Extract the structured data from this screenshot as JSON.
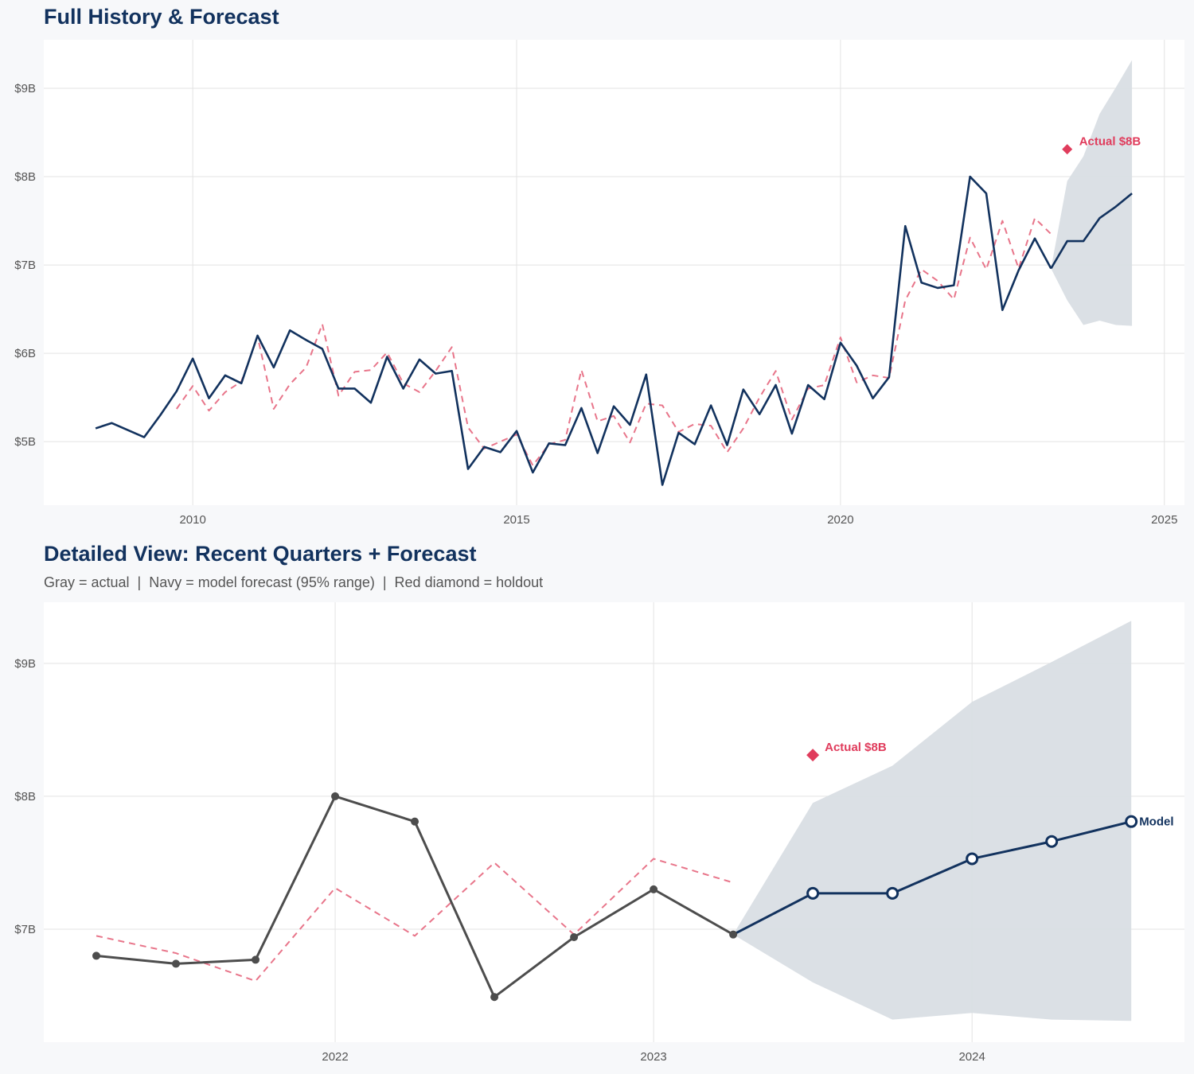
{
  "titles": {
    "top": "Full History & Forecast",
    "bottom": "Detailed View: Recent Quarters + Forecast",
    "bottom_subtitle": "Gray = actual  |  Navy = model forecast (95% range)  |  Red diamond = holdout"
  },
  "colors": {
    "navy": "#12325e",
    "gray_actual": "#4d4d4d",
    "fitted": "#e8758a",
    "holdout": "#e03c5c",
    "band": "#d9dee4",
    "grid": "#e3e3e3"
  },
  "chart_data": [
    {
      "type": "line",
      "title": "Full History & Forecast",
      "xlim": [
        "2007-Q3",
        "2025-Q2"
      ],
      "ylim": [
        4.28,
        9.55
      ],
      "x_ticks": [
        {
          "value": 2010,
          "label": "2010"
        },
        {
          "value": 2015,
          "label": "2015"
        },
        {
          "value": 2020,
          "label": "2020"
        },
        {
          "value": 2025,
          "label": "2025"
        }
      ],
      "y_ticks": [
        {
          "value": 5,
          "label": "$5B"
        },
        {
          "value": 6,
          "label": "$6B"
        },
        {
          "value": 7,
          "label": "$7B"
        },
        {
          "value": 8,
          "label": "$8B"
        },
        {
          "value": 9,
          "label": "$9B"
        }
      ],
      "grid": true,
      "actual": {
        "color": "navy",
        "markers": false,
        "points": [
          [
            "2008-Q3",
            5.15
          ],
          [
            "2008-Q4",
            5.21
          ],
          [
            "2009-Q1",
            5.13
          ],
          [
            "2009-Q2",
            5.05
          ],
          [
            "2009-Q3",
            5.3
          ],
          [
            "2009-Q4",
            5.57
          ],
          [
            "2010-Q1",
            5.94
          ],
          [
            "2010-Q2",
            5.49
          ],
          [
            "2010-Q3",
            5.75
          ],
          [
            "2010-Q4",
            5.66
          ],
          [
            "2011-Q1",
            6.2
          ],
          [
            "2011-Q2",
            5.84
          ],
          [
            "2011-Q3",
            6.26
          ],
          [
            "2011-Q4",
            6.15
          ],
          [
            "2012-Q1",
            6.05
          ],
          [
            "2012-Q2",
            5.6
          ],
          [
            "2012-Q3",
            5.6
          ],
          [
            "2012-Q4",
            5.44
          ],
          [
            "2013-Q1",
            5.96
          ],
          [
            "2013-Q2",
            5.6
          ],
          [
            "2013-Q3",
            5.93
          ],
          [
            "2013-Q4",
            5.77
          ],
          [
            "2014-Q1",
            5.8
          ],
          [
            "2014-Q2",
            4.69
          ],
          [
            "2014-Q3",
            4.94
          ],
          [
            "2014-Q4",
            4.88
          ],
          [
            "2015-Q1",
            5.12
          ],
          [
            "2015-Q2",
            4.65
          ],
          [
            "2015-Q3",
            4.98
          ],
          [
            "2015-Q4",
            4.96
          ],
          [
            "2016-Q1",
            5.38
          ],
          [
            "2016-Q2",
            4.87
          ],
          [
            "2016-Q3",
            5.4
          ],
          [
            "2016-Q4",
            5.19
          ],
          [
            "2017-Q1",
            5.76
          ],
          [
            "2017-Q2",
            4.51
          ],
          [
            "2017-Q3",
            5.1
          ],
          [
            "2017-Q4",
            4.97
          ],
          [
            "2018-Q1",
            5.41
          ],
          [
            "2018-Q2",
            4.96
          ],
          [
            "2018-Q3",
            5.59
          ],
          [
            "2018-Q4",
            5.31
          ],
          [
            "2019-Q1",
            5.64
          ],
          [
            "2019-Q2",
            5.09
          ],
          [
            "2019-Q3",
            5.64
          ],
          [
            "2019-Q4",
            5.48
          ],
          [
            "2020-Q1",
            6.12
          ],
          [
            "2020-Q2",
            5.86
          ],
          [
            "2020-Q3",
            5.49
          ],
          [
            "2020-Q4",
            5.73
          ],
          [
            "2021-Q1",
            7.44
          ],
          [
            "2021-Q2",
            6.8
          ],
          [
            "2021-Q3",
            6.74
          ],
          [
            "2021-Q4",
            6.77
          ],
          [
            "2022-Q1",
            8.0
          ],
          [
            "2022-Q2",
            7.81
          ],
          [
            "2022-Q3",
            6.49
          ],
          [
            "2022-Q4",
            6.94
          ],
          [
            "2023-Q1",
            7.3
          ],
          [
            "2023-Q2",
            6.96
          ]
        ]
      },
      "fitted": {
        "color": "fitted",
        "dashed": true,
        "points": [
          [
            "2009-Q4",
            5.37
          ],
          [
            "2010-Q1",
            5.63
          ],
          [
            "2010-Q2",
            5.35
          ],
          [
            "2010-Q3",
            5.56
          ],
          [
            "2010-Q4",
            5.68
          ],
          [
            "2011-Q1",
            6.19
          ],
          [
            "2011-Q2",
            5.37
          ],
          [
            "2011-Q3",
            5.65
          ],
          [
            "2011-Q4",
            5.84
          ],
          [
            "2012-Q1",
            6.33
          ],
          [
            "2012-Q2",
            5.52
          ],
          [
            "2012-Q3",
            5.79
          ],
          [
            "2012-Q4",
            5.81
          ],
          [
            "2013-Q1",
            6.01
          ],
          [
            "2013-Q2",
            5.66
          ],
          [
            "2013-Q3",
            5.56
          ],
          [
            "2013-Q4",
            5.8
          ],
          [
            "2014-Q1",
            6.07
          ],
          [
            "2014-Q2",
            5.16
          ],
          [
            "2014-Q3",
            4.92
          ],
          [
            "2014-Q4",
            5.0
          ],
          [
            "2015-Q1",
            5.08
          ],
          [
            "2015-Q2",
            4.73
          ],
          [
            "2015-Q3",
            4.97
          ],
          [
            "2015-Q4",
            5.02
          ],
          [
            "2016-Q1",
            5.81
          ],
          [
            "2016-Q2",
            5.23
          ],
          [
            "2016-Q3",
            5.29
          ],
          [
            "2016-Q4",
            4.99
          ],
          [
            "2017-Q1",
            5.43
          ],
          [
            "2017-Q2",
            5.41
          ],
          [
            "2017-Q3",
            5.11
          ],
          [
            "2017-Q4",
            5.2
          ],
          [
            "2018-Q1",
            5.18
          ],
          [
            "2018-Q2",
            4.88
          ],
          [
            "2018-Q3",
            5.15
          ],
          [
            "2018-Q4",
            5.5
          ],
          [
            "2019-Q1",
            5.8
          ],
          [
            "2019-Q2",
            5.25
          ],
          [
            "2019-Q3",
            5.6
          ],
          [
            "2019-Q4",
            5.64
          ],
          [
            "2020-Q1",
            6.18
          ],
          [
            "2020-Q2",
            5.67
          ],
          [
            "2020-Q3",
            5.75
          ],
          [
            "2020-Q4",
            5.72
          ],
          [
            "2021-Q1",
            6.6
          ],
          [
            "2021-Q2",
            6.95
          ],
          [
            "2021-Q3",
            6.82
          ],
          [
            "2021-Q4",
            6.61
          ],
          [
            "2022-Q1",
            7.31
          ],
          [
            "2022-Q2",
            6.95
          ],
          [
            "2022-Q3",
            7.5
          ],
          [
            "2022-Q4",
            6.96
          ],
          [
            "2023-Q1",
            7.53
          ],
          [
            "2023-Q2",
            7.35
          ]
        ]
      },
      "forecast": {
        "color": "navy",
        "markers": false,
        "points": [
          [
            "2023-Q2",
            6.96
          ],
          [
            "2023-Q3",
            7.27
          ],
          [
            "2023-Q4",
            7.27
          ],
          [
            "2024-Q1",
            7.53
          ],
          [
            "2024-Q2",
            7.66
          ],
          [
            "2024-Q3",
            7.81
          ]
        ]
      },
      "band_95": {
        "x": [
          "2023-Q2",
          "2023-Q3",
          "2023-Q4",
          "2024-Q1",
          "2024-Q2",
          "2024-Q3"
        ],
        "upper": [
          6.96,
          7.95,
          8.23,
          8.71,
          9.01,
          9.32
        ],
        "lower": [
          6.96,
          6.6,
          6.32,
          6.37,
          6.32,
          6.31
        ]
      },
      "holdout": {
        "x": "2023-Q3",
        "y": 8.31,
        "label": "Actual $8B"
      }
    },
    {
      "type": "line",
      "title": "Detailed View: Recent Quarters + Forecast",
      "xlim": [
        "2021-Q2",
        "2024-Q3"
      ],
      "ylim": [
        6.15,
        9.46
      ],
      "x_ticks": [
        {
          "value": 2022,
          "label": "2022"
        },
        {
          "value": 2023,
          "label": "2023"
        },
        {
          "value": 2024,
          "label": "2024"
        }
      ],
      "y_ticks": [
        {
          "value": 7,
          "label": "$7B"
        },
        {
          "value": 8,
          "label": "$8B"
        },
        {
          "value": 9,
          "label": "$9B"
        }
      ],
      "grid": true,
      "actual": {
        "color": "gray_actual",
        "markers": true,
        "points": [
          [
            "2021-Q2",
            6.8
          ],
          [
            "2021-Q3",
            6.74
          ],
          [
            "2021-Q4",
            6.77
          ],
          [
            "2022-Q1",
            8.0
          ],
          [
            "2022-Q2",
            7.81
          ],
          [
            "2022-Q3",
            6.49
          ],
          [
            "2022-Q4",
            6.94
          ],
          [
            "2023-Q1",
            7.3
          ],
          [
            "2023-Q2",
            6.96
          ]
        ]
      },
      "fitted": {
        "color": "fitted",
        "dashed": true,
        "points": [
          [
            "2021-Q2",
            6.95
          ],
          [
            "2021-Q3",
            6.82
          ],
          [
            "2021-Q4",
            6.61
          ],
          [
            "2022-Q1",
            7.31
          ],
          [
            "2022-Q2",
            6.95
          ],
          [
            "2022-Q3",
            7.5
          ],
          [
            "2022-Q4",
            6.96
          ],
          [
            "2023-Q1",
            7.53
          ],
          [
            "2023-Q2",
            7.35
          ]
        ]
      },
      "forecast": {
        "color": "navy",
        "markers": true,
        "label": "Model",
        "points": [
          [
            "2023-Q2",
            6.96
          ],
          [
            "2023-Q3",
            7.27
          ],
          [
            "2023-Q4",
            7.27
          ],
          [
            "2024-Q1",
            7.53
          ],
          [
            "2024-Q2",
            7.66
          ],
          [
            "2024-Q3",
            7.81
          ]
        ]
      },
      "band_95": {
        "x": [
          "2023-Q2",
          "2023-Q3",
          "2023-Q4",
          "2024-Q1",
          "2024-Q2",
          "2024-Q3"
        ],
        "upper": [
          6.96,
          7.95,
          8.23,
          8.71,
          9.01,
          9.32
        ],
        "lower": [
          6.96,
          6.6,
          6.32,
          6.37,
          6.32,
          6.31
        ]
      },
      "holdout": {
        "x": "2023-Q3",
        "y": 8.31,
        "label": "Actual $8B"
      }
    }
  ]
}
